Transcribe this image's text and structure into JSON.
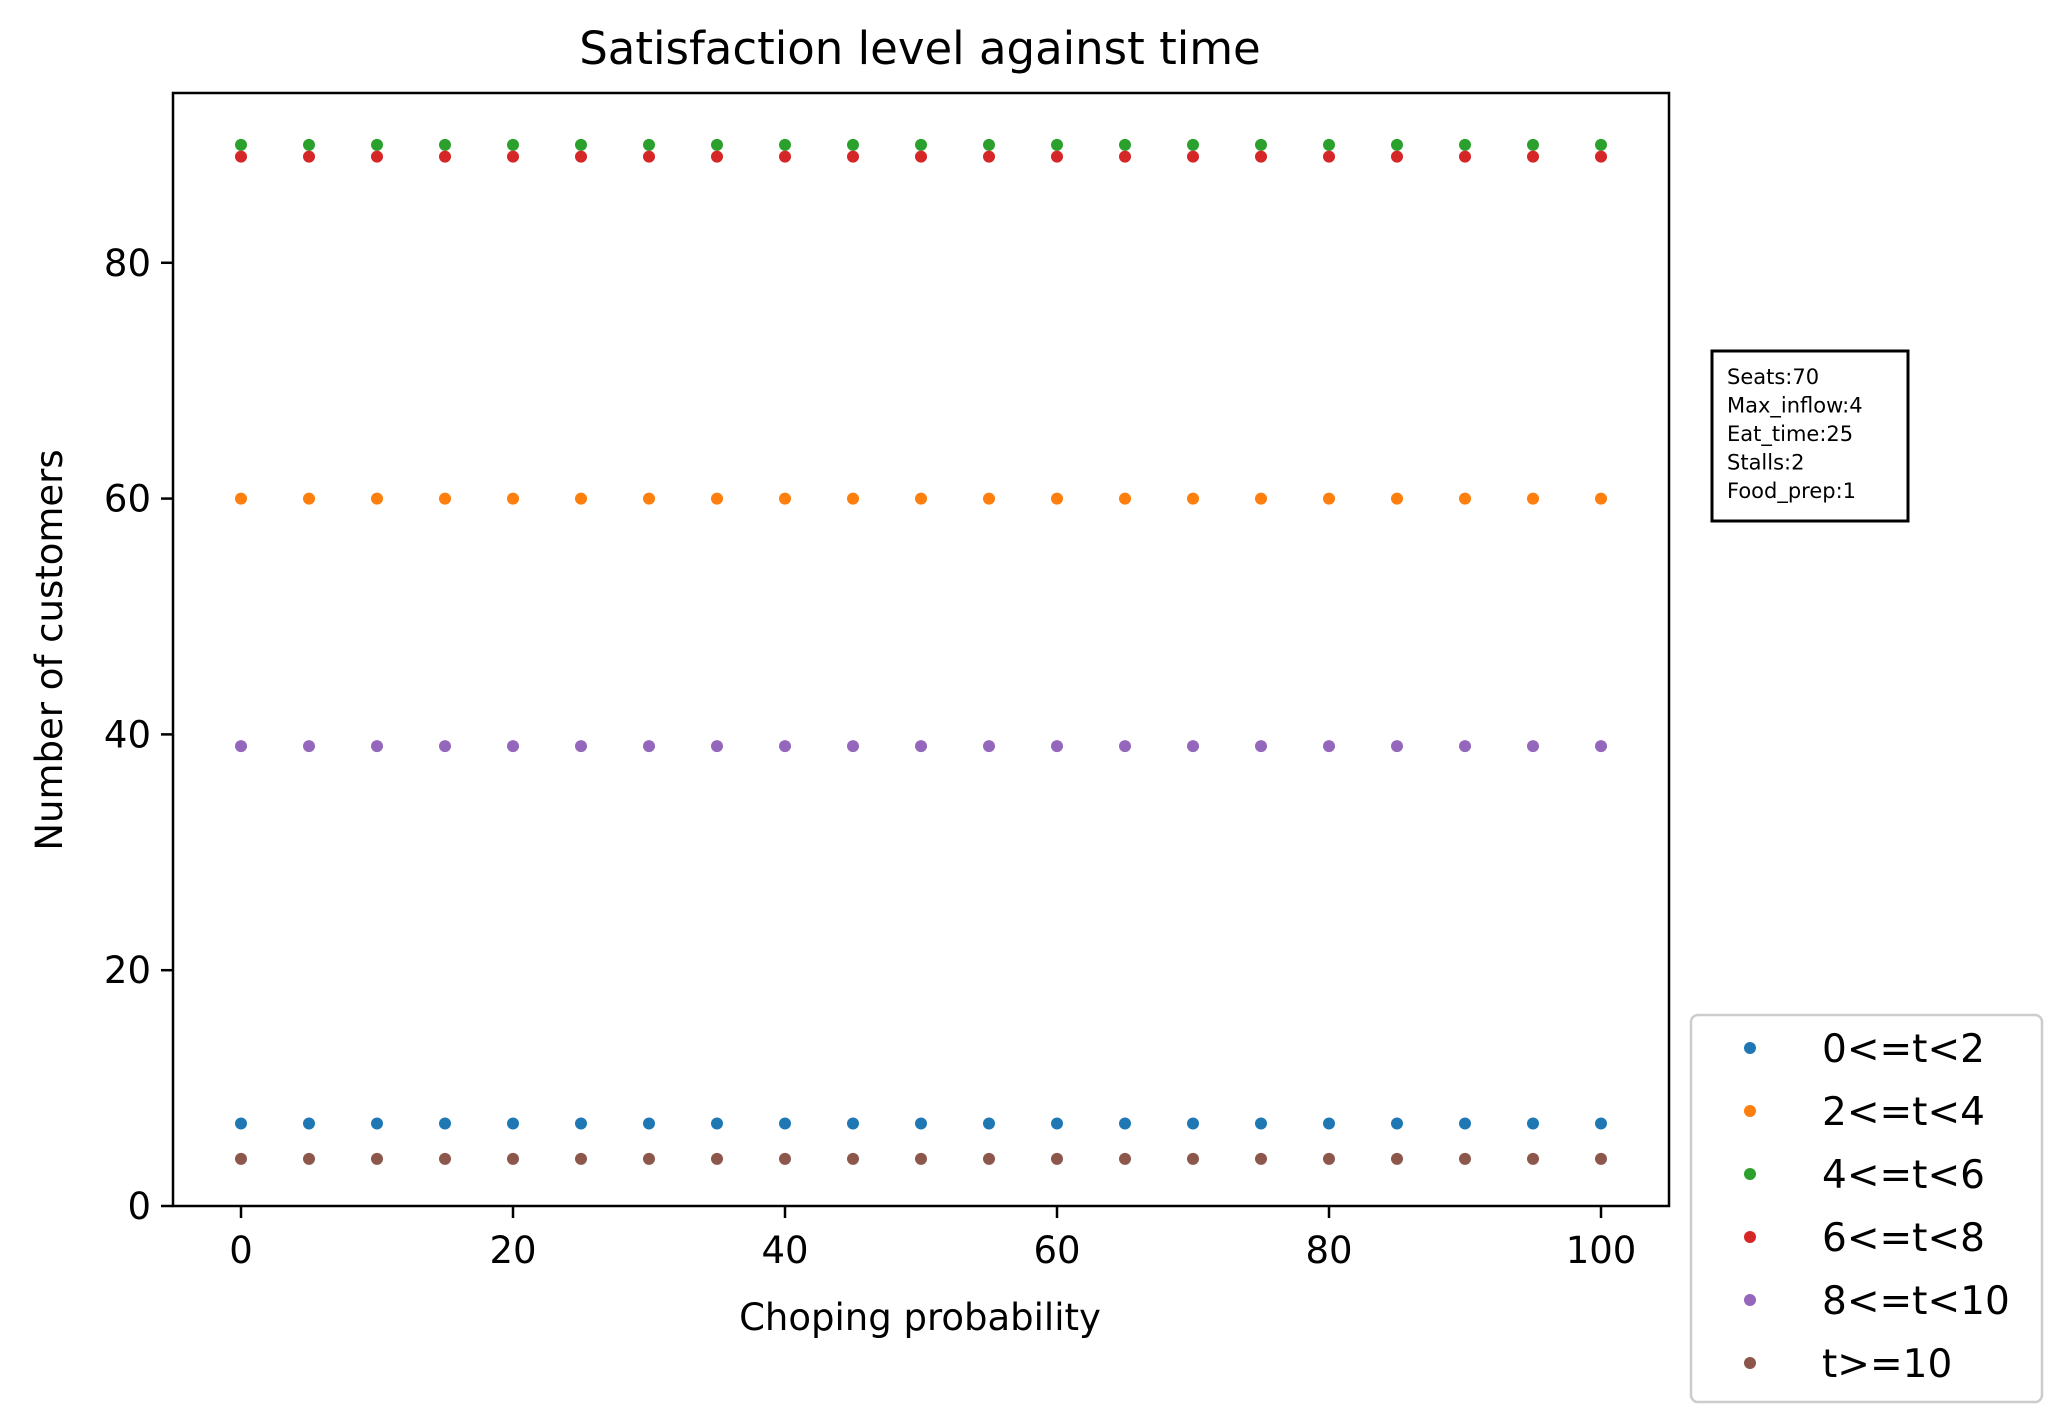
{
  "chart_data": {
    "type": "scatter",
    "title": "Satisfaction level against time",
    "xlabel": "Choping probability",
    "ylabel": "Number of customers",
    "xlim": [
      -5,
      105
    ],
    "ylim": [
      0,
      94.4
    ],
    "xticks": [
      0,
      20,
      40,
      60,
      80,
      100
    ],
    "yticks": [
      0,
      20,
      40,
      60,
      80
    ],
    "x": [
      0,
      5,
      10,
      15,
      20,
      25,
      30,
      35,
      40,
      45,
      50,
      55,
      60,
      65,
      70,
      75,
      80,
      85,
      90,
      95,
      100
    ],
    "series": [
      {
        "name": "0<=t<2",
        "color": "#1f77b4",
        "values": [
          7,
          7,
          7,
          7,
          7,
          7,
          7,
          7,
          7,
          7,
          7,
          7,
          7,
          7,
          7,
          7,
          7,
          7,
          7,
          7,
          7
        ]
      },
      {
        "name": "2<=t<4",
        "color": "#ff7f0e",
        "values": [
          60,
          60,
          60,
          60,
          60,
          60,
          60,
          60,
          60,
          60,
          60,
          60,
          60,
          60,
          60,
          60,
          60,
          60,
          60,
          60,
          60
        ]
      },
      {
        "name": "4<=t<6",
        "color": "#2ca02c",
        "values": [
          90,
          90,
          90,
          90,
          90,
          90,
          90,
          90,
          90,
          90,
          90,
          90,
          90,
          90,
          90,
          90,
          90,
          90,
          90,
          90,
          90
        ]
      },
      {
        "name": "6<=t<8",
        "color": "#d62728",
        "values": [
          89,
          89,
          89,
          89,
          89,
          89,
          89,
          89,
          89,
          89,
          89,
          89,
          89,
          89,
          89,
          89,
          89,
          89,
          89,
          89,
          89
        ]
      },
      {
        "name": "8<=t<10",
        "color": "#9467bd",
        "values": [
          39,
          39,
          39,
          39,
          39,
          39,
          39,
          39,
          39,
          39,
          39,
          39,
          39,
          39,
          39,
          39,
          39,
          39,
          39,
          39,
          39
        ]
      },
      {
        "name": "t>=10",
        "color": "#8c564b",
        "values": [
          4,
          4,
          4,
          4,
          4,
          4,
          4,
          4,
          4,
          4,
          4,
          4,
          4,
          4,
          4,
          4,
          4,
          4,
          4,
          4,
          4
        ]
      }
    ],
    "legend_placement": "outside-bottom-right",
    "annotation": [
      "Seats:70",
      "Max_inflow:4",
      "Eat_time:25",
      "Stalls:2",
      "Food_prep:1"
    ],
    "grid": false
  }
}
